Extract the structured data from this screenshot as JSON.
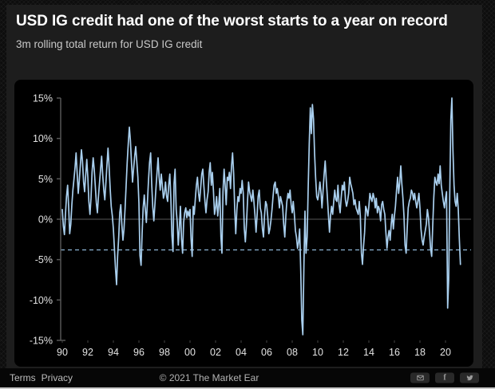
{
  "header": {
    "title": "USD IG credit had one of the worst starts to a year on record",
    "subtitle": "3m rolling total return for USD IG credit"
  },
  "footer": {
    "terms_label": "Terms",
    "privacy_label": "Privacy",
    "copyright": "© 2021 The Market Ear",
    "social_buttons": [
      "email",
      "facebook",
      "twitter"
    ]
  },
  "colors": {
    "page_background": "#0d0d0d",
    "card_background": "#1d1d1d",
    "chart_background": "#000000",
    "footer_background": "#060606",
    "title_text": "#ffffff",
    "subtitle_text": "#c9c9c9",
    "footer_text": "#bdbdbd",
    "accent_line": "#a9cfee"
  },
  "chart_data": {
    "type": "line",
    "title": "3m rolling total return for USD IG credit",
    "xlabel": "",
    "ylabel": "",
    "ylim": [
      -15,
      15
    ],
    "grid": "zero-line-only",
    "legend_position": "none",
    "x_start_year": 1990,
    "points_per_year": 12,
    "x_tick_years": [
      1990,
      1992,
      1994,
      1996,
      1998,
      2000,
      2002,
      2004,
      2006,
      2008,
      2010,
      2012,
      2014,
      2016,
      2018,
      2020
    ],
    "x_tick_labels": [
      "90",
      "92",
      "94",
      "96",
      "98",
      "00",
      "02",
      "04",
      "06",
      "08",
      "10",
      "12",
      "14",
      "16",
      "18",
      "20"
    ],
    "y_ticks": [
      15,
      10,
      5,
      0,
      -5,
      -10,
      -15
    ],
    "y_tick_labels": [
      "15%",
      "10%",
      "5%",
      "0%",
      "-5%",
      "-10%",
      "-15%"
    ],
    "zero_line": 0,
    "dashed_reference_line": -3.8,
    "line_color": "#a9cfee",
    "dashed_line_color": "#8db6d6",
    "zero_line_color": "#464646",
    "axis_line_color": "#565656",
    "axis_text_color": "#e3e3e3",
    "x_axis_tick_color": "#444444",
    "series": [
      {
        "name": "USD IG credit 3m rolling total return (%)",
        "values_by_year": [
          [
            1.2,
            -0.8,
            -1.9,
            0.6,
            2.8,
            4.2,
            1.5,
            -1.8,
            -0.6,
            1.8,
            3.6,
            5.0
          ],
          [
            6.4,
            8.2,
            5.6,
            3.2,
            4.8,
            6.8,
            8.6,
            7.2,
            4.6,
            3.4,
            5.4,
            7.4
          ],
          [
            5.2,
            2.2,
            0.6,
            2.6,
            5.8,
            7.6,
            6.2,
            4.2,
            2.0,
            0.8,
            2.8,
            4.6
          ],
          [
            6.2,
            7.8,
            5.4,
            3.6,
            2.4,
            4.6,
            6.8,
            8.8,
            6.4,
            3.8,
            1.6,
            0.4
          ],
          [
            -1.2,
            -3.6,
            -6.2,
            -8.1,
            -4.6,
            -2.2,
            0.8,
            1.8,
            -0.8,
            -2.6,
            -1.2,
            1.4
          ],
          [
            4.2,
            7.0,
            9.4,
            11.4,
            9.8,
            7.0,
            4.6,
            6.2,
            7.8,
            9.0,
            7.2,
            5.2
          ],
          [
            2.0,
            -4.5,
            -5.7,
            -1.8,
            1.4,
            3.0,
            1.2,
            -0.4,
            2.2,
            4.8,
            7.0,
            8.2
          ],
          [
            4.4,
            1.6,
            -0.2,
            1.8,
            3.8,
            5.8,
            7.6,
            5.2,
            3.6,
            5.6,
            4.2,
            2.6
          ],
          [
            3.2,
            4.6,
            2.8,
            2.2,
            4.2,
            5.6,
            2.6,
            -2.0,
            -4.0,
            4.4,
            6.2,
            1.2
          ],
          [
            -0.4,
            -3.2,
            -1.0,
            1.6,
            -2.4,
            -4.2,
            -0.4,
            0.8,
            1.4,
            0.2,
            1.0,
            0.4
          ],
          [
            1.2,
            -2.4,
            -4.6,
            1.6,
            0.6,
            2.6,
            4.2,
            5.2,
            3.2,
            2.2,
            3.8,
            5.6
          ],
          [
            6.2,
            4.2,
            2.2,
            0.8,
            2.4,
            3.4,
            5.8,
            7.0,
            4.2,
            5.8,
            3.6,
            0.6
          ],
          [
            1.4,
            2.8,
            0.4,
            1.8,
            3.8,
            -2.2,
            -4.2,
            3.4,
            6.2,
            4.2,
            1.8,
            5.2
          ],
          [
            4.8,
            5.8,
            3.8,
            6.6,
            8.2,
            5.6,
            1.2,
            -1.8,
            1.2,
            2.8,
            2.2,
            3.8
          ],
          [
            3.2,
            4.8,
            3.2,
            -1.2,
            -2.8,
            -0.6,
            2.2,
            4.6,
            3.4,
            2.8,
            2.2,
            3.6
          ],
          [
            2.2,
            0.6,
            -1.6,
            0.4,
            2.8,
            3.6,
            1.4,
            0.8,
            -1.2,
            -2.2,
            0.4,
            2.2
          ],
          [
            1.8,
            0.4,
            -1.8,
            -1.2,
            -0.2,
            1.2,
            2.8,
            4.2,
            4.6,
            3.2,
            3.8,
            2.8
          ],
          [
            1.4,
            2.8,
            2.2,
            1.6,
            -0.6,
            -2.2,
            0.4,
            2.2,
            3.2,
            2.6,
            3.6,
            1.8
          ],
          [
            0.8,
            2.2,
            0.6,
            -1.4,
            -2.2,
            -3.6,
            -2.8,
            -1.2,
            -6.4,
            -12.5,
            -14.3,
            -5.5
          ],
          [
            1.0,
            -4.2,
            -2.2,
            3.8,
            9.2,
            13.8,
            10.6,
            14.2,
            12.4,
            8.2,
            5.2,
            2.8
          ],
          [
            2.4,
            3.2,
            4.6,
            3.4,
            1.4,
            3.6,
            5.6,
            7.2,
            4.8,
            2.8,
            0.6,
            -1.6
          ],
          [
            0.4,
            1.6,
            0.6,
            2.2,
            3.6,
            2.4,
            2.2,
            4.2,
            1.8,
            0.8,
            2.6,
            4.2
          ],
          [
            3.6,
            4.6,
            2.4,
            1.6,
            2.2,
            3.2,
            5.2,
            4.4,
            3.8,
            3.2,
            1.8,
            2.4
          ],
          [
            1.4,
            1.0,
            0.6,
            2.2,
            0.4,
            -4.2,
            -5.6,
            -3.4,
            -1.6,
            1.6,
            1.2,
            0.4
          ],
          [
            1.6,
            3.2,
            2.6,
            2.2,
            3.2,
            2.6,
            1.4,
            2.6,
            0.8,
            1.6,
            1.2,
            -0.2
          ],
          [
            1.8,
            2.2,
            1.2,
            0.6,
            -1.6,
            -3.6,
            -2.2,
            -1.4,
            -2.6,
            -0.6,
            0.6,
            -1.2
          ],
          [
            0.4,
            1.6,
            3.6,
            5.2,
            3.2,
            4.6,
            6.6,
            4.4,
            2.6,
            0.4,
            -3.2,
            -4.2
          ],
          [
            -1.2,
            1.4,
            2.2,
            2.6,
            3.6,
            3.2,
            2.4,
            3.2,
            2.2,
            1.4,
            2.2,
            3.2
          ],
          [
            1.4,
            -1.2,
            -2.6,
            -3.2,
            -2.2,
            -1.4,
            -0.6,
            1.2,
            0.2,
            -1.6,
            -3.6,
            -4.6
          ],
          [
            -0.8,
            2.6,
            5.2,
            4.6,
            4.2,
            5.6,
            4.4,
            6.6,
            4.2,
            3.2,
            2.2,
            1.4
          ],
          [
            2.6,
            3.4,
            -11.0,
            -7.5,
            3.0,
            12.4,
            15.0,
            8.6,
            4.2,
            2.2,
            1.6,
            3.2
          ],
          [
            1.2,
            -2.4,
            -5.6
          ]
        ]
      }
    ]
  }
}
